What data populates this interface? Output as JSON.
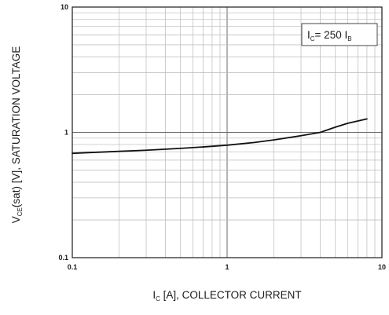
{
  "chart_data": {
    "type": "line",
    "xscale": "log",
    "yscale": "log",
    "xlim": [
      0.1,
      10
    ],
    "ylim": [
      0.1,
      10
    ],
    "grid": true,
    "x_ticks": [
      "0.1",
      "1",
      "10"
    ],
    "y_ticks": [
      "0.1",
      "1",
      "10"
    ],
    "xlabel": {
      "main": "I",
      "sub": "C",
      "rest": " [A], COLLECTOR CURRENT"
    },
    "ylabel": {
      "main": "V",
      "sub": "CE",
      "rest": "(sat) [V], SATURATION VOLTAGE"
    },
    "annotation": {
      "lhs": "I",
      "lhs_sub": "C",
      "mid": "= 250 I",
      "rhs_sub": "B"
    },
    "series": [
      {
        "x": [
          0.1,
          0.15,
          0.2,
          0.3,
          0.5,
          0.7,
          1.0,
          1.5,
          2.0,
          3.0,
          4.0,
          5.0,
          6.0,
          8.0
        ],
        "y": [
          0.68,
          0.695,
          0.705,
          0.72,
          0.745,
          0.765,
          0.79,
          0.83,
          0.87,
          0.94,
          1.0,
          1.1,
          1.18,
          1.28
        ]
      }
    ]
  }
}
